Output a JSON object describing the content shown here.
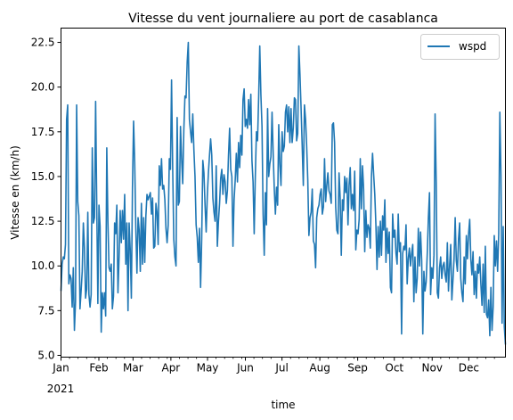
{
  "chart_data": {
    "type": "line",
    "title": "Vitesse du vent journaliere au port de casablanca",
    "xlabel": "time",
    "ylabel": "Vitesse en (km/h)",
    "year_label": "2021",
    "x_tick_labels": [
      "Jan",
      "Feb",
      "Mar",
      "Apr",
      "May",
      "Jun",
      "Jul",
      "Aug",
      "Sep",
      "Oct",
      "Nov",
      "Dec"
    ],
    "y_tick_labels": [
      "5.0",
      "7.5",
      "10.0",
      "12.5",
      "15.0",
      "17.5",
      "20.0",
      "22.5"
    ],
    "y_ticks": [
      5.0,
      7.5,
      10.0,
      12.5,
      15.0,
      17.5,
      20.0,
      22.5
    ],
    "ylim": [
      4.9,
      23.3
    ],
    "x_range": [
      "2021-01-01",
      "2021-12-31"
    ],
    "legend": {
      "position": "top-right",
      "entries": [
        "wspd"
      ]
    },
    "grid": false,
    "series": [
      {
        "name": "wspd",
        "color": "#1f77b4",
        "start_date": "2021-01-01",
        "frequency": "daily",
        "values": [
          8.6,
          10.1,
          10.5,
          10.4,
          11.2,
          18.2,
          19.0,
          9.0,
          9.5,
          9.3,
          7.7,
          9.9,
          6.4,
          8.0,
          19.0,
          13.6,
          12.8,
          7.6,
          8.6,
          9.7,
          12.4,
          11.0,
          8.2,
          8.7,
          13.0,
          8.4,
          7.7,
          8.4,
          16.6,
          12.4,
          12.7,
          19.2,
          13.5,
          7.9,
          13.4,
          12.2,
          6.3,
          8.5,
          7.6,
          8.5,
          7.2,
          16.6,
          12.5,
          9.9,
          9.7,
          10.1,
          7.6,
          8.3,
          12.4,
          11.8,
          13.4,
          8.5,
          10.5,
          13.1,
          11.3,
          13.1,
          11.5,
          14.0,
          10.1,
          12.4,
          7.5,
          12.4,
          10.9,
          8.2,
          14.4,
          18.1,
          15.8,
          12.1,
          9.6,
          12.7,
          12.0,
          9.7,
          13.5,
          10.1,
          12.7,
          10.2,
          12.8,
          14.0,
          13.7,
          13.9,
          14.1,
          12.9,
          13.8,
          11.0,
          11.1,
          13.5,
          13.0,
          11.2,
          15.6,
          14.5,
          16.0,
          14.3,
          14.5,
          13.7,
          12.1,
          11.3,
          12.3,
          16.0,
          15.4,
          20.4,
          15.5,
          11.5,
          10.5,
          10.0,
          18.3,
          13.4,
          13.6,
          17.8,
          16.0,
          14.6,
          17.6,
          19.5,
          19.4,
          21.4,
          22.5,
          18.2,
          17.5,
          16.9,
          18.5,
          16.5,
          15.0,
          12.3,
          11.6,
          10.2,
          12.1,
          8.8,
          11.5,
          15.9,
          15.2,
          13.4,
          11.9,
          13.9,
          15.2,
          16.2,
          17.1,
          16.2,
          13.8,
          13.0,
          12.5,
          15.6,
          11.1,
          12.5,
          13.5,
          14.9,
          15.4,
          14.0,
          15.1,
          14.7,
          13.5,
          14.2,
          16.2,
          17.7,
          15.4,
          15.0,
          11.1,
          13.7,
          14.8,
          16.3,
          14.7,
          16.9,
          15.5,
          17.3,
          16.2,
          19.3,
          19.9,
          17.8,
          18.2,
          17.7,
          19.3,
          17.9,
          19.6,
          15.9,
          14.7,
          11.8,
          15.0,
          17.5,
          17.0,
          19.4,
          22.3,
          19.6,
          17.8,
          12.9,
          10.6,
          14.1,
          12.3,
          18.8,
          15.0,
          15.7,
          16.1,
          18.6,
          16.3,
          14.3,
          12.9,
          14.4,
          13.4,
          17.9,
          15.7,
          14.5,
          17.5,
          16.4,
          16.7,
          18.6,
          19.0,
          17.5,
          18.9,
          16.9,
          18.8,
          16.9,
          17.7,
          19.4,
          19.3,
          17.0,
          17.4,
          22.3,
          20.7,
          18.8,
          16.7,
          14.5,
          19.0,
          18.2,
          16.7,
          14.8,
          11.7,
          12.7,
          13.0,
          14.3,
          11.4,
          11.2,
          9.9,
          12.7,
          13.2,
          13.4,
          14.0,
          14.3,
          12.9,
          13.3,
          16.0,
          13.6,
          14.5,
          15.2,
          14.2,
          14.0,
          13.5,
          17.9,
          18.0,
          16.9,
          13.3,
          12.0,
          11.8,
          15.2,
          13.8,
          10.6,
          13.7,
          13.1,
          15.0,
          14.1,
          14.9,
          12.3,
          14.5,
          15.5,
          13.2,
          14.0,
          13.1,
          15.3,
          10.9,
          12.0,
          11.8,
          12.6,
          16.0,
          13.2,
          15.6,
          14.3,
          10.8,
          13.1,
          11.6,
          12.3,
          12.1,
          11.0,
          15.0,
          16.3,
          15.1,
          14.0,
          12.3,
          9.8,
          12.2,
          10.5,
          12.5,
          10.6,
          12.8,
          12.0,
          13.7,
          10.2,
          12.1,
          10.7,
          11.9,
          8.8,
          8.5,
          12.9,
          11.6,
          12.0,
          10.7,
          10.1,
          12.9,
          10.8,
          11.3,
          6.2,
          10.7,
          11.1,
          10.9,
          12.3,
          9.0,
          10.4,
          11.0,
          10.0,
          10.7,
          11.2,
          8.0,
          10.5,
          8.5,
          9.3,
          12.1,
          10.0,
          11.9,
          10.3,
          6.2,
          9.7,
          8.6,
          9.1,
          10.7,
          12.7,
          14.1,
          8.4,
          9.9,
          9.3,
          10.6,
          18.5,
          14.7,
          8.5,
          8.2,
          9.9,
          10.5,
          9.3,
          10.0,
          10.2,
          9.5,
          9.1,
          11.3,
          8.6,
          10.0,
          11.2,
          8.1,
          9.2,
          10.4,
          12.7,
          10.3,
          9.7,
          11.5,
          12.4,
          9.3,
          8.5,
          8.0,
          10.5,
          9.0,
          11.7,
          10.4,
          11.8,
          12.6,
          10.4,
          9.5,
          10.8,
          8.4,
          9.7,
          8.2,
          10.1,
          9.6,
          10.5,
          9.0,
          7.8,
          10.1,
          7.4,
          11.1,
          7.3,
          7.1,
          8.1,
          6.1,
          8.8,
          6.4,
          7.7,
          11.7,
          10.0,
          11.4,
          9.7,
          11.8,
          18.6,
          15.1,
          6.8,
          12.2,
          6.6,
          5.6
        ]
      }
    ]
  }
}
